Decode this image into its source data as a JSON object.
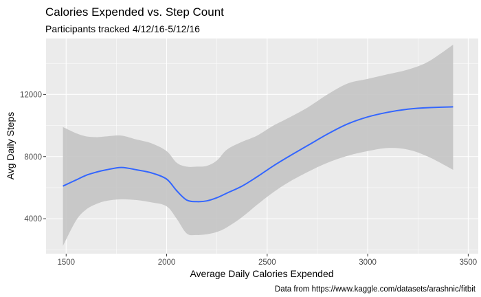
{
  "chart_data": {
    "type": "line",
    "title": "Calories Expended vs. Step Count",
    "subtitle": "Participants tracked 4/12/16-5/12/16",
    "xlabel": "Average Daily Calories Expended",
    "ylabel": "Avg Daily Steps",
    "caption": "Data from https://www.kaggle.com/datasets/arashnic/fitbit",
    "xlim": [
      1400,
      3550
    ],
    "ylim": [
      1750,
      15600
    ],
    "x_ticks": [
      1500,
      2000,
      2500,
      3000,
      3500
    ],
    "y_ticks": [
      4000,
      8000,
      12000
    ],
    "grid": true,
    "colors": {
      "panel": "#ebebeb",
      "grid": "#ffffff",
      "line": "#3366ff",
      "ribbon": "#c4c4c4"
    },
    "series": [
      {
        "x": [
          1484,
          1550,
          1600,
          1650,
          1700,
          1775,
          1850,
          1925,
          2000,
          2050,
          2100,
          2150,
          2200,
          2250,
          2300,
          2375,
          2450,
          2525,
          2600,
          2700,
          2800,
          2900,
          3000,
          3100,
          3200,
          3300,
          3425
        ],
        "y": [
          6100,
          6500,
          6800,
          7000,
          7150,
          7300,
          7150,
          6950,
          6550,
          5800,
          5200,
          5100,
          5150,
          5350,
          5650,
          6100,
          6700,
          7350,
          7950,
          8700,
          9450,
          10100,
          10550,
          10850,
          11050,
          11150,
          11200
        ],
        "lower": [
          2250,
          3900,
          4600,
          4950,
          5150,
          5250,
          5200,
          5050,
          4800,
          4000,
          3050,
          2950,
          3000,
          3150,
          3450,
          4100,
          4900,
          5650,
          6300,
          7000,
          7600,
          8050,
          8350,
          8550,
          8450,
          8000,
          7150
        ],
        "upper": [
          9900,
          9500,
          9300,
          9250,
          9300,
          9350,
          9100,
          8850,
          8350,
          7600,
          7350,
          7350,
          7400,
          7750,
          8450,
          8950,
          9350,
          9950,
          10450,
          11150,
          12000,
          12700,
          13000,
          13300,
          13600,
          14100,
          15200
        ]
      }
    ]
  }
}
